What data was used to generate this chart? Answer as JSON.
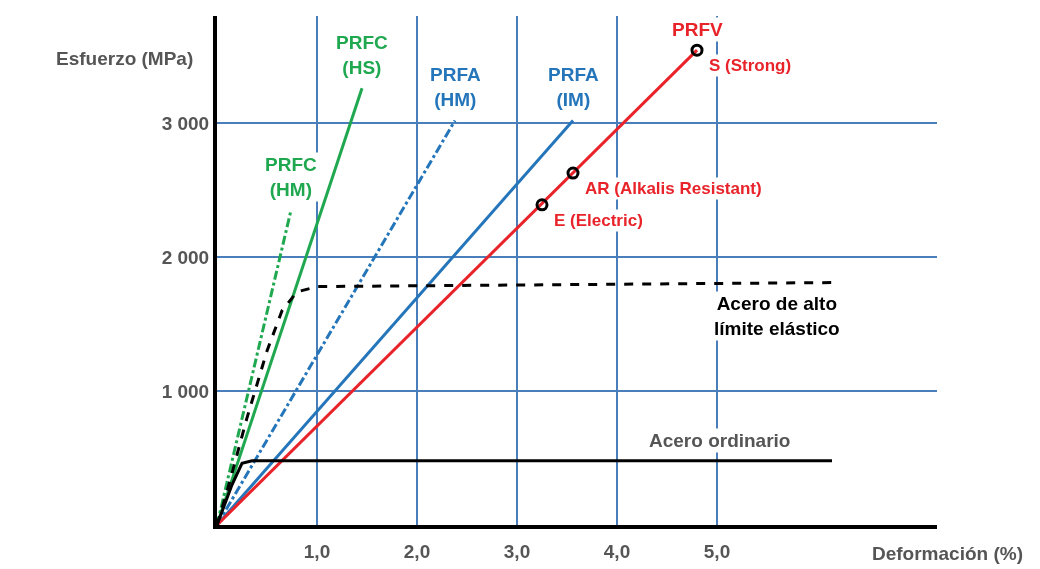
{
  "chart_data": {
    "type": "line",
    "xlabel": "Deformación (%)",
    "ylabel": "Esfuerzo (MPa)",
    "xlim": [
      0,
      7.2
    ],
    "ylim": [
      0,
      3800
    ],
    "xticks": [
      {
        "value": 1,
        "label": "1,0"
      },
      {
        "value": 2,
        "label": "2,0"
      },
      {
        "value": 3,
        "label": "3,0"
      },
      {
        "value": 4,
        "label": "4,0"
      },
      {
        "value": 5,
        "label": "5,0"
      }
    ],
    "yticks": [
      {
        "value": 1000,
        "label": "1 000"
      },
      {
        "value": 2000,
        "label": "2 000"
      },
      {
        "value": 3000,
        "label": "3 000"
      }
    ],
    "grid": true,
    "legend": false,
    "marker": "none",
    "series": [
      {
        "name": "PRFC (HM)",
        "color": "#1fa84f",
        "line_style": "dashdot",
        "x": [
          0,
          0.74
        ],
        "values": [
          0,
          2350
        ]
      },
      {
        "name": "PRFC (HS)",
        "color": "#1fa84f",
        "line_style": "solid",
        "x": [
          0,
          1.45
        ],
        "values": [
          0,
          3260
        ]
      },
      {
        "name": "PRFA (HM)",
        "color": "#2475b9",
        "line_style": "dashdot",
        "x": [
          0,
          2.38
        ],
        "values": [
          0,
          3020
        ]
      },
      {
        "name": "PRFA (IM)",
        "color": "#2475b9",
        "line_style": "solid",
        "x": [
          0,
          3.56
        ],
        "values": [
          0,
          3020
        ]
      },
      {
        "name": "PRFV",
        "color": "#e8232a",
        "line_style": "solid",
        "x": [
          0,
          4.8
        ],
        "values": [
          0,
          3545
        ]
      },
      {
        "name": "Acero de alto límite elástico",
        "color": "#000000",
        "line_style": "dashed",
        "x": [
          0,
          0.1,
          0.3,
          0.5,
          0.65,
          0.8,
          1.0,
          6.15
        ],
        "values": [
          0,
          250,
          800,
          1300,
          1600,
          1740,
          1780,
          1810
        ]
      },
      {
        "name": "Acero ordinario",
        "color": "#000000",
        "line_style": "solid",
        "x": [
          0,
          0.15,
          0.25,
          0.35,
          6.15
        ],
        "values": [
          0,
          300,
          460,
          480,
          480
        ]
      },
      {
        "type": "scatter",
        "marker": "circle",
        "color": "#000000",
        "x": [
          3.25,
          3.56,
          4.8
        ],
        "values": [
          2390,
          2627,
          3545
        ]
      }
    ],
    "annotations": [
      {
        "text": "E (Electric)",
        "x": 3.25,
        "y": 2390
      },
      {
        "text": "AR (Alkalis Resistant)",
        "x": 3.56,
        "y": 2627
      },
      {
        "text": "S (Strong)",
        "x": 4.8,
        "y": 3545
      }
    ]
  }
}
